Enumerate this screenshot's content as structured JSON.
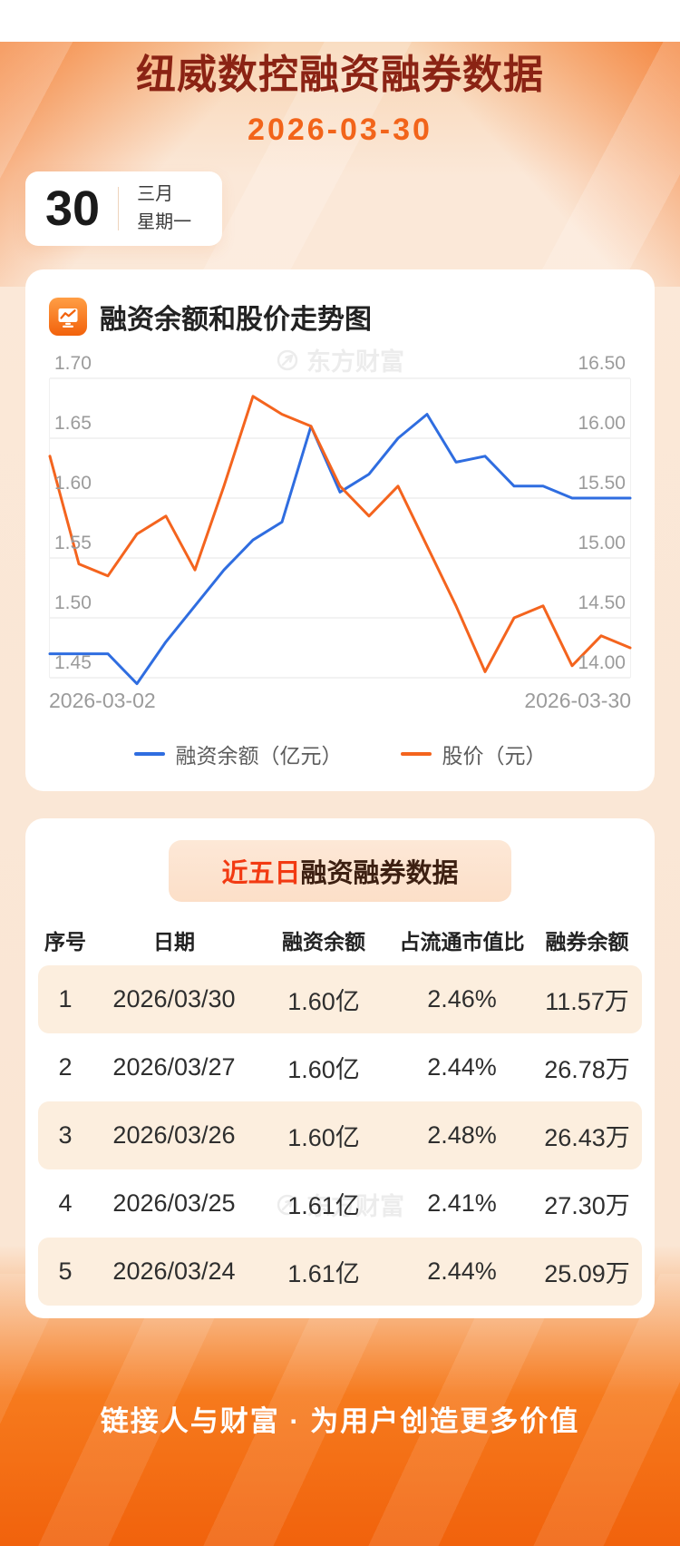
{
  "page": {
    "title": "纽威数控融资融券数据",
    "date": "2026-03-30"
  },
  "calendar": {
    "day": "30",
    "month": "三月",
    "weekday": "星期一"
  },
  "chart_section": {
    "header": "融资余额和股价走势图",
    "watermark": "东方财富"
  },
  "chart_data": {
    "type": "line",
    "x_axis": {
      "start_label": "2026-03-02",
      "end_label": "2026-03-30",
      "points": 21
    },
    "left_axis": {
      "min": 1.45,
      "max": 1.7,
      "ticks": [
        "1.70",
        "1.65",
        "1.60",
        "1.55",
        "1.50",
        "1.45"
      ]
    },
    "right_axis": {
      "min": 14.0,
      "max": 16.5,
      "ticks": [
        "16.50",
        "16.00",
        "15.50",
        "15.00",
        "14.50",
        "14.00"
      ]
    },
    "grid": true,
    "legend_position": "bottom",
    "series": [
      {
        "name": "融资余额（亿元）",
        "axis": "left",
        "color": "#2f6de0",
        "values": [
          1.47,
          1.47,
          1.47,
          1.445,
          1.48,
          1.51,
          1.54,
          1.565,
          1.58,
          1.66,
          1.605,
          1.62,
          1.65,
          1.67,
          1.63,
          1.635,
          1.61,
          1.61,
          1.6,
          1.6,
          1.6
        ]
      },
      {
        "name": "股价（元）",
        "axis": "right",
        "color": "#f4641e",
        "values": [
          15.85,
          14.95,
          14.85,
          15.2,
          15.35,
          14.9,
          15.6,
          16.35,
          16.2,
          16.1,
          15.6,
          15.35,
          15.6,
          15.1,
          14.6,
          14.05,
          14.5,
          14.6,
          14.1,
          14.35,
          14.25
        ]
      }
    ]
  },
  "table_section": {
    "badge_highlight": "近五日",
    "badge_rest": "融资融券数据",
    "watermark": "东方财富",
    "columns": [
      "序号",
      "日期",
      "融资余额",
      "占流通市值比",
      "融券余额"
    ],
    "rows": [
      [
        "1",
        "2026/03/30",
        "1.60亿",
        "2.46%",
        "11.57万"
      ],
      [
        "2",
        "2026/03/27",
        "1.60亿",
        "2.44%",
        "26.78万"
      ],
      [
        "3",
        "2026/03/26",
        "1.60亿",
        "2.48%",
        "26.43万"
      ],
      [
        "4",
        "2026/03/25",
        "1.61亿",
        "2.41%",
        "27.30万"
      ],
      [
        "5",
        "2026/03/24",
        "1.61亿",
        "2.44%",
        "25.09万"
      ]
    ]
  },
  "footer": {
    "text": "链接人与财富 · 为用户创造更多价值"
  },
  "colors": {
    "accent_orange": "#f2620c",
    "title_maroon": "#8b2314",
    "date_orange": "#f2641a",
    "highlight_red": "#f23a12",
    "line_blue": "#2f6de0",
    "line_orange": "#f4641e",
    "row_shade": "#fceede"
  }
}
